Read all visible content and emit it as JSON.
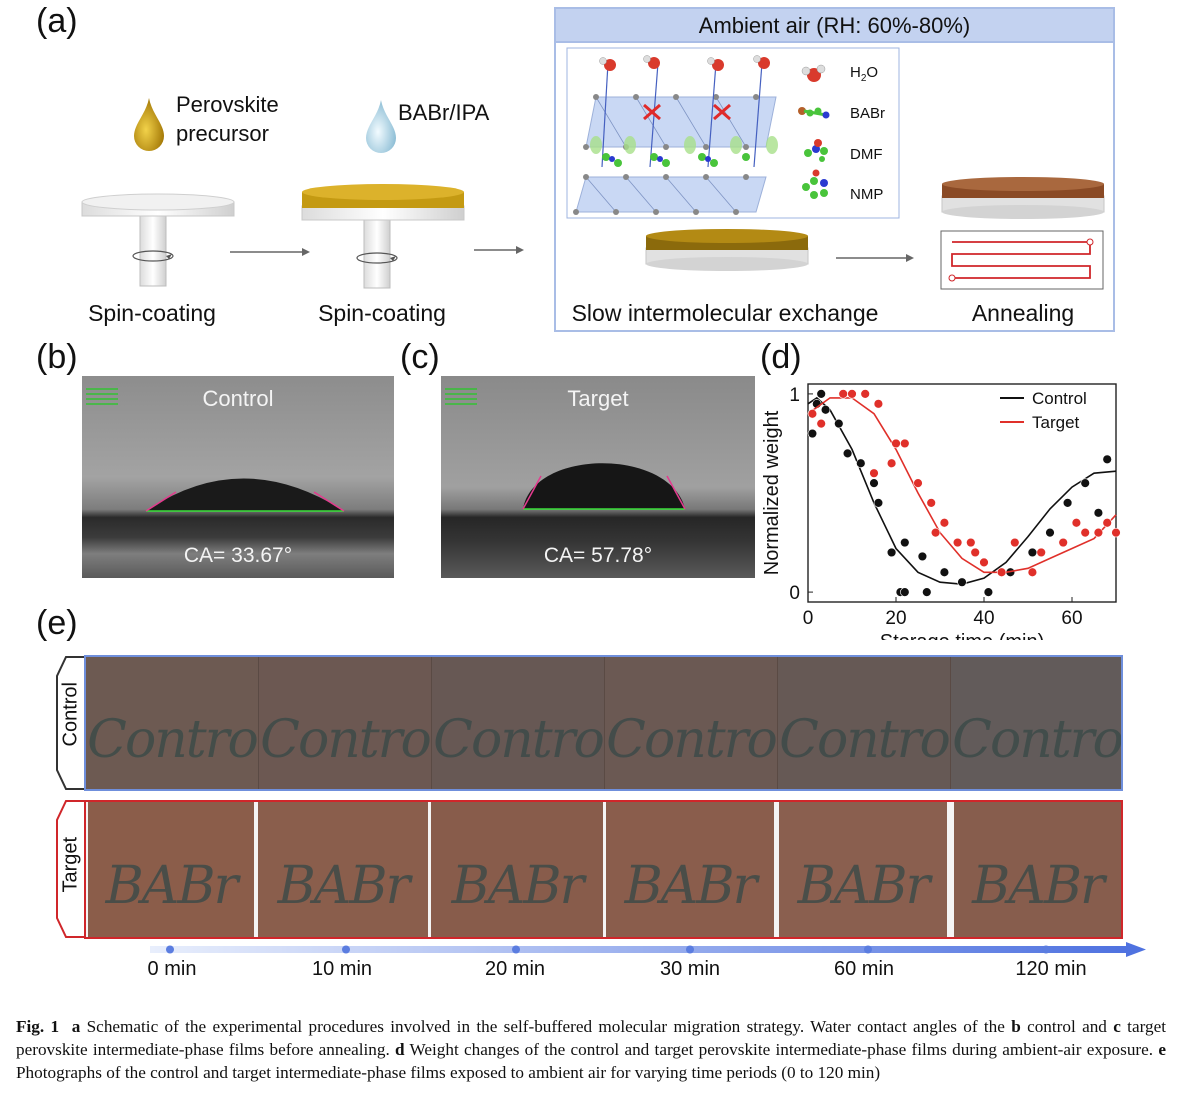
{
  "panel_labels": {
    "a": "(a)",
    "b": "(b)",
    "c": "(c)",
    "d": "(d)",
    "e": "(e)"
  },
  "panel_a": {
    "drop1_label_line1": "Perovskite",
    "drop1_label_line2": "precursor",
    "drop2_label": "BABr/IPA",
    "step1": "Spin-coating",
    "step2": "Spin-coating",
    "step3": "Slow intermolecular exchange",
    "step4": "Annealing",
    "box_title": "Ambient air (RH: 60%-80%)",
    "legend": [
      {
        "label": "H",
        "sub": "2",
        "suffix": "O"
      },
      {
        "label": "BABr",
        "sub": "",
        "suffix": ""
      },
      {
        "label": "DMF",
        "sub": "",
        "suffix": ""
      },
      {
        "label": "NMP",
        "sub": "",
        "suffix": ""
      }
    ]
  },
  "panel_b": {
    "title": "Control",
    "ca": "CA= 33.67°"
  },
  "panel_c": {
    "title": "Target",
    "ca": "CA= 57.78°"
  },
  "chart_data": {
    "type": "scatter",
    "xlabel": "Storage time (min)",
    "ylabel": "Normalized weight",
    "xlim": [
      0,
      70
    ],
    "ylim": [
      -0.05,
      1.05
    ],
    "xticks": [
      0,
      20,
      40,
      60
    ],
    "yticks": [
      0,
      1
    ],
    "legend": [
      "Control",
      "Target"
    ],
    "series": [
      {
        "name": "Control",
        "color": "#111111",
        "points": [
          [
            1,
            0.8
          ],
          [
            2,
            0.95
          ],
          [
            3,
            1
          ],
          [
            4,
            0.92
          ],
          [
            7,
            0.85
          ],
          [
            9,
            0.7
          ],
          [
            12,
            0.65
          ],
          [
            15,
            0.55
          ],
          [
            16,
            0.45
          ],
          [
            19,
            0.2
          ],
          [
            22,
            0.25
          ],
          [
            26,
            0.18
          ],
          [
            21,
            0
          ],
          [
            22,
            0
          ],
          [
            27,
            0
          ],
          [
            31,
            0.1
          ],
          [
            35,
            0.05
          ],
          [
            41,
            0
          ],
          [
            46,
            0.1
          ],
          [
            51,
            0.2
          ],
          [
            55,
            0.3
          ],
          [
            59,
            0.45
          ],
          [
            63,
            0.55
          ],
          [
            66,
            0.4
          ],
          [
            68,
            0.67
          ]
        ],
        "curve": [
          [
            0,
            0.95
          ],
          [
            2,
            0.98
          ],
          [
            5,
            0.92
          ],
          [
            10,
            0.72
          ],
          [
            15,
            0.45
          ],
          [
            20,
            0.22
          ],
          [
            25,
            0.1
          ],
          [
            30,
            0.05
          ],
          [
            35,
            0.04
          ],
          [
            40,
            0.07
          ],
          [
            45,
            0.15
          ],
          [
            50,
            0.28
          ],
          [
            55,
            0.42
          ],
          [
            60,
            0.53
          ],
          [
            65,
            0.6
          ],
          [
            70,
            0.61
          ]
        ]
      },
      {
        "name": "Target",
        "color": "#e0302a",
        "points": [
          [
            1,
            0.9
          ],
          [
            3,
            0.85
          ],
          [
            8,
            1
          ],
          [
            10,
            1
          ],
          [
            13,
            1
          ],
          [
            16,
            0.95
          ],
          [
            20,
            0.75
          ],
          [
            22,
            0.75
          ],
          [
            19,
            0.65
          ],
          [
            15,
            0.6
          ],
          [
            25,
            0.55
          ],
          [
            28,
            0.45
          ],
          [
            29,
            0.3
          ],
          [
            31,
            0.35
          ],
          [
            34,
            0.25
          ],
          [
            37,
            0.25
          ],
          [
            38,
            0.2
          ],
          [
            40,
            0.15
          ],
          [
            44,
            0.1
          ],
          [
            47,
            0.25
          ],
          [
            51,
            0.1
          ],
          [
            53,
            0.2
          ],
          [
            58,
            0.25
          ],
          [
            61,
            0.35
          ],
          [
            63,
            0.3
          ],
          [
            66,
            0.3
          ],
          [
            68,
            0.35
          ],
          [
            70,
            0.3
          ]
        ],
        "curve": [
          [
            0,
            0.9
          ],
          [
            5,
            0.98
          ],
          [
            10,
            0.98
          ],
          [
            15,
            0.9
          ],
          [
            20,
            0.72
          ],
          [
            25,
            0.5
          ],
          [
            30,
            0.3
          ],
          [
            35,
            0.17
          ],
          [
            40,
            0.1
          ],
          [
            45,
            0.1
          ],
          [
            50,
            0.12
          ],
          [
            55,
            0.17
          ],
          [
            60,
            0.22
          ],
          [
            65,
            0.27
          ],
          [
            70,
            0.39
          ]
        ]
      }
    ]
  },
  "panel_e": {
    "row1_label": "Control",
    "row1_word": "Contro",
    "row2_label": "Target",
    "row2_word": "BABr",
    "times": [
      "0 min",
      "10 min",
      "20 min",
      "30 min",
      "60 min",
      "120 min"
    ]
  },
  "caption": {
    "fig": "Fig. 1",
    "a": "a",
    "t1": " Schematic of the experimental procedures involved in the self-buffered molecular migration strategy. Water contact angles of the ",
    "b": "b",
    "t2": " control and ",
    "c": "c",
    "t3": " target perovskite intermediate-phase films before annealing. ",
    "d": "d",
    "t4": " Weight changes of the control and target perovskite intermediate-phase films during ambient-air exposure. ",
    "e": "e",
    "t5": " Photographs of the control and target intermediate-phase films exposed to ambient air for varying time periods (0 to 120 min)"
  },
  "colors": {
    "gold": "#c49a12",
    "blue_box": "#7a96d0",
    "red": "#d0262a",
    "control_film": "#6e5a53",
    "target_film": "#8a5d4b"
  }
}
